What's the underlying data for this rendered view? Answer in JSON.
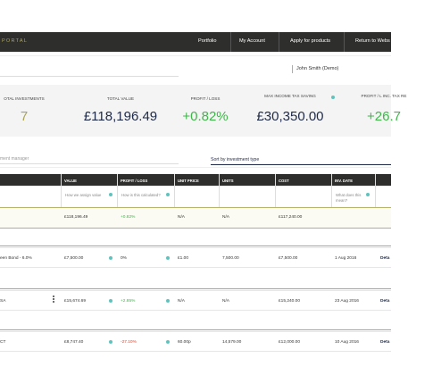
{
  "header": {
    "brand": "PORTAL",
    "nav": [
      "Portfolio",
      "My Account",
      "Apply for products",
      "Return to Webs"
    ]
  },
  "user": "John Smith (Demo)",
  "stats": [
    {
      "label": "OTAL INVESTMENTS",
      "value": "7",
      "tone": "olive"
    },
    {
      "label": "TOTAL VALUE",
      "value": "£118,196.49",
      "tone": "navy"
    },
    {
      "label": "PROFIT / LOSS",
      "value": "+0.82%",
      "tone": "green"
    },
    {
      "label": "MAX INCOME TAX SAVING",
      "value": "£30,350.00",
      "tone": "navy"
    },
    {
      "label": "PROFIT / L INC. TAX RE",
      "value": "+26.7",
      "tone": "green"
    }
  ],
  "filters": {
    "manager": "ment manager",
    "sort": "Sort by investment type"
  },
  "table": {
    "columns": [
      "VALUE",
      "PROFIT / LOSS",
      "UNIT PRICE",
      "UNITS",
      "COST",
      "INV. DATE"
    ],
    "help": {
      "value": "How we assign value",
      "profit": "How is this calculated?",
      "date": "What does this mean?"
    },
    "total": [
      "£118,196.49",
      "+0.82%",
      "N/A",
      "N/A",
      "£117,240.00"
    ],
    "rows": [
      {
        "name": "een Bond - 6.0%",
        "cells": [
          "£7,500.00",
          "0%",
          "£1.00",
          "7,500.00",
          "£7,500.00",
          "1 Aug 2016"
        ],
        "action": "Deta"
      },
      {
        "name": "SA",
        "cells": [
          "£15,674.69",
          "+2.85%",
          "N/A",
          "N/A",
          "£15,240.00",
          "23 Aug 2016"
        ],
        "action": "Deta"
      },
      {
        "name": "CT",
        "cells": [
          "£8,747.40",
          "-27.10%",
          "60.00p",
          "14,579.00",
          "£12,000.00",
          "10 Aug 2016"
        ],
        "action": "Deta"
      }
    ]
  }
}
